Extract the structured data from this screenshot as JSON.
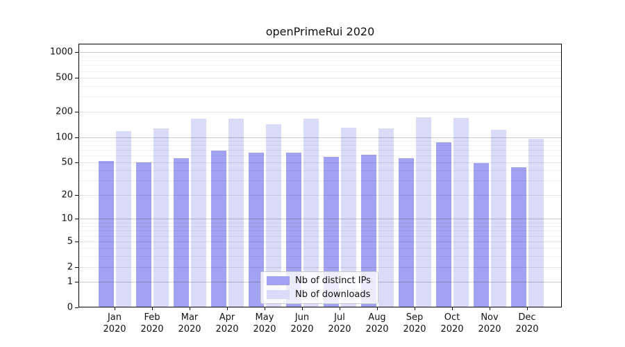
{
  "figure": {
    "background": "#ffffff"
  },
  "chart_data": {
    "type": "bar",
    "title": "openPrimeRui 2020",
    "categories": [
      "Jan 2020",
      "Feb 2020",
      "Mar 2020",
      "Apr 2020",
      "May 2020",
      "Jun 2020",
      "Jul 2020",
      "Aug 2020",
      "Sep 2020",
      "Oct 2020",
      "Nov 2020",
      "Dec 2020"
    ],
    "series": [
      {
        "name": "Nb of distinct IPs",
        "color": "#a2a2f2",
        "values": [
          52,
          50,
          56,
          69,
          65,
          65,
          58,
          61,
          56,
          86,
          49,
          44
        ]
      },
      {
        "name": "Nb of downloads",
        "color": "#dadaf9",
        "values": [
          117,
          126,
          164,
          164,
          142,
          166,
          130,
          128,
          173,
          167,
          123,
          96
        ]
      }
    ],
    "yticks": [
      0,
      1,
      2,
      5,
      10,
      20,
      50,
      100,
      200,
      500,
      1000
    ],
    "scale": "log10(value+1)",
    "ylim": [
      0,
      1280
    ],
    "xlabel": "",
    "ylabel": "",
    "grid": true,
    "legend_position": "lower center"
  }
}
